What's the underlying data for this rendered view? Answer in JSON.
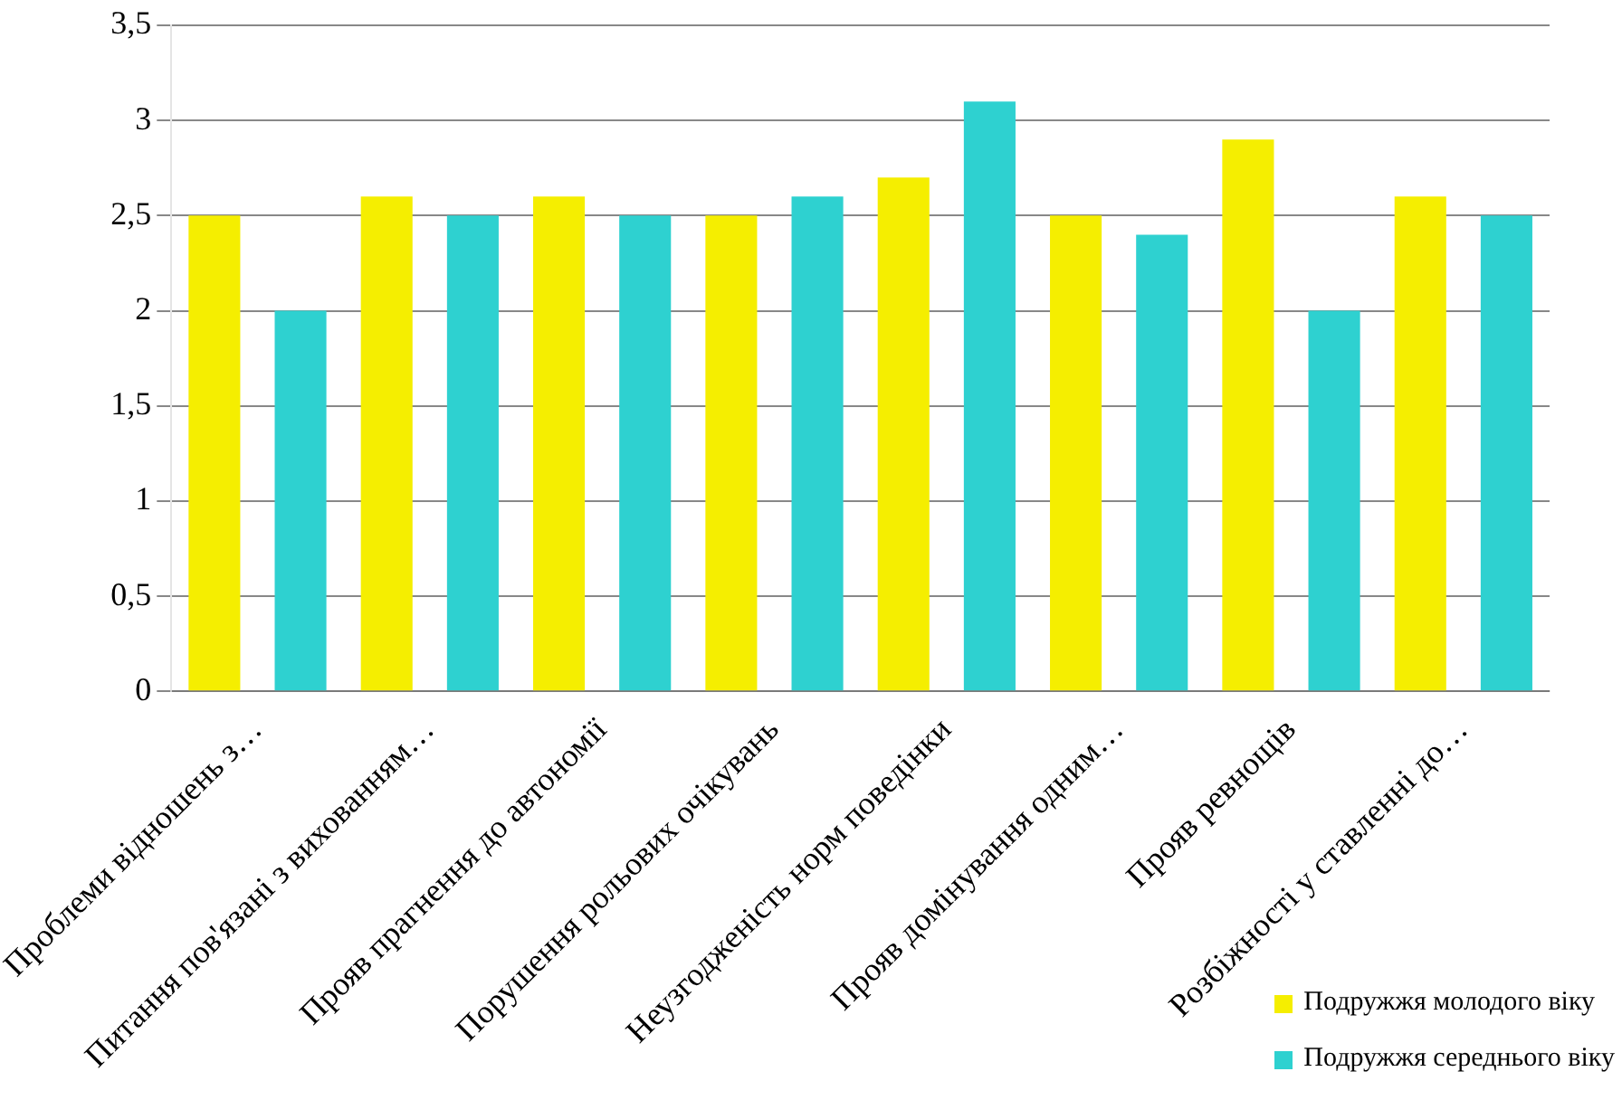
{
  "chart_data": {
    "type": "bar",
    "categories": [
      "Проблеми відношень з…",
      "Питання пов'язані з вихованням…",
      "Прояв прагнення до автономії",
      "Порушення рольових очікувань",
      "Неузгодженість норм поведінки",
      "Прояв домінування одним…",
      "Прояв ревнощів",
      "Розбіжності у ставленні до…"
    ],
    "series": [
      {
        "name": "Подружжя молодого віку",
        "color": "#f5ee00",
        "values": [
          2.5,
          2.6,
          2.6,
          2.5,
          2.7,
          2.5,
          2.9,
          2.6
        ]
      },
      {
        "name": "Подружжя середнього віку",
        "color": "#2ed1d0",
        "values": [
          2.0,
          2.5,
          2.5,
          2.6,
          3.1,
          2.4,
          2.0,
          2.5
        ]
      }
    ],
    "ylim": [
      0,
      3.5
    ],
    "yticks": [
      0,
      {
        "value": 0.5,
        "label": "0,5"
      },
      1,
      {
        "value": 1.5,
        "label": "1,5"
      },
      2,
      {
        "value": 2.5,
        "label": "2,5"
      },
      3,
      {
        "value": 3.5,
        "label": "3,5"
      }
    ],
    "grid": "y",
    "legend": "bottom right"
  }
}
